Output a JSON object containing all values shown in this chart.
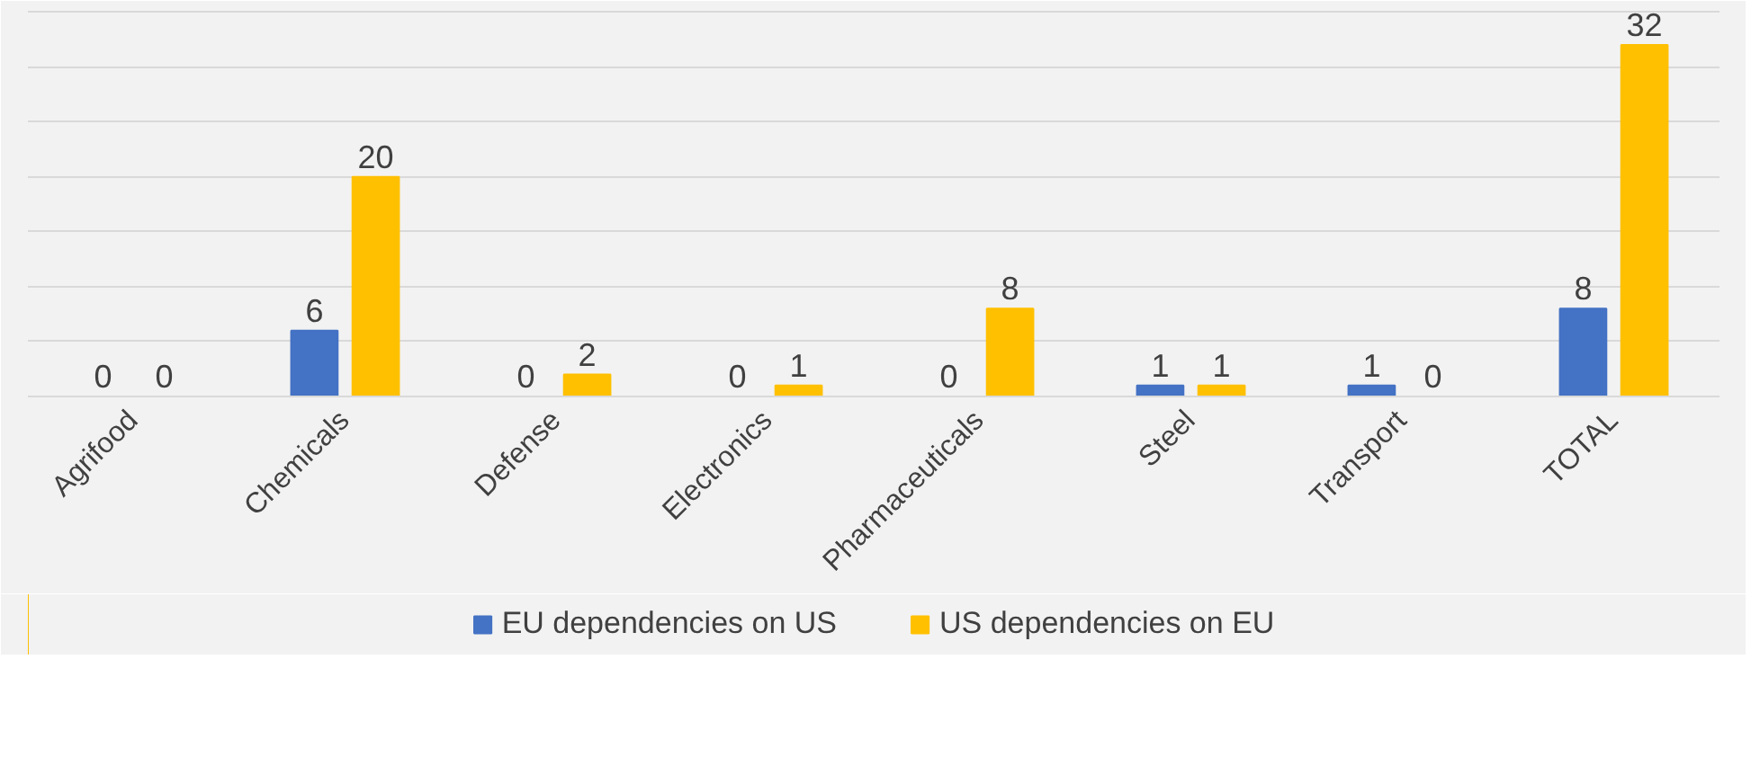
{
  "chart_data": {
    "type": "bar",
    "categories": [
      "Agrifood",
      "Chemicals",
      "Defense",
      "Electronics",
      "Pharmaceuticals",
      "Steel",
      "Transport",
      "TOTAL"
    ],
    "series": [
      {
        "name": "EU dependencies on US",
        "color": "#4472c4",
        "values": [
          0,
          6,
          0,
          0,
          0,
          1,
          1,
          8
        ]
      },
      {
        "name": "US dependencies on EU",
        "color": "#ffc000",
        "values": [
          0,
          20,
          2,
          1,
          8,
          1,
          0,
          32
        ]
      }
    ],
    "tick_labels": "x",
    "grid": "y",
    "legend": "bottom",
    "data_labels": true
  }
}
